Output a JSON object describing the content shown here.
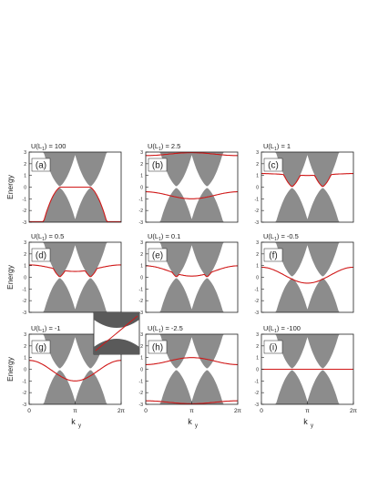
{
  "figure": {
    "ylabel": "Energy",
    "xlabel_main": "k",
    "xlabel_sub": "y",
    "x_ticks": [
      "0",
      "π",
      "2π"
    ],
    "y_ticks": [
      "3",
      "2",
      "1",
      "0",
      "-1",
      "-2",
      "-3"
    ]
  },
  "chart_data": [
    {
      "type": "area",
      "panel": "(a)",
      "title": "U(L",
      "title_sub": "1",
      "title_value": ") = 100",
      "red_curve": "flat",
      "red_energy": 0.0,
      "red_band": "lower",
      "xlim": [
        0,
        6.2832
      ],
      "ylim": [
        -3,
        3
      ]
    },
    {
      "type": "area",
      "panel": "(b)",
      "title": "U(L",
      "title_sub": "1",
      "title_value": ") = 2.5",
      "red_curve": "bound",
      "red_energy": 2.7,
      "red_band": "both",
      "xlim": [
        0,
        6.2832
      ],
      "ylim": [
        -3,
        3
      ]
    },
    {
      "type": "area",
      "panel": "(c)",
      "title": "U(L",
      "title_sub": "1",
      "title_value": ") = 1",
      "red_curve": "edge",
      "red_energy": 1.0,
      "red_band": "upper",
      "xlim": [
        0,
        6.2832
      ],
      "ylim": [
        -3,
        3
      ]
    },
    {
      "type": "area",
      "panel": "(d)",
      "title": "U(L",
      "title_sub": "1",
      "title_value": ") = 0.5",
      "red_curve": "edge",
      "red_energy": 0.5,
      "red_band": "upper",
      "xlim": [
        0,
        6.2832
      ],
      "ylim": [
        -3,
        3
      ]
    },
    {
      "type": "area",
      "panel": "(e)",
      "title": "U(L",
      "title_sub": "1",
      "title_value": ") = 0.1",
      "red_curve": "edge",
      "red_energy": 0.1,
      "red_band": "upper",
      "xlim": [
        0,
        6.2832
      ],
      "ylim": [
        -3,
        3
      ]
    },
    {
      "type": "area",
      "panel": "(f)",
      "title": "U(L",
      "title_sub": "1",
      "title_value": ") = -0.5",
      "red_curve": "edge",
      "red_energy": -0.5,
      "red_band": "upper",
      "xlim": [
        0,
        6.2832
      ],
      "ylim": [
        -3,
        3
      ]
    },
    {
      "type": "area",
      "panel": "(g)",
      "title": "U(L",
      "title_sub": "1",
      "title_value": ") = -1",
      "red_curve": "edge",
      "red_energy": -1.0,
      "red_band": "upper",
      "xlim": [
        0,
        6.2832
      ],
      "ylim": [
        -3,
        3
      ]
    },
    {
      "type": "area",
      "panel": "(h)",
      "title": "U(L",
      "title_sub": "1",
      "title_value": ") = -2.5",
      "red_curve": "bound",
      "red_energy": -2.7,
      "red_band": "both",
      "xlim": [
        0,
        6.2832
      ],
      "ylim": [
        -3,
        3
      ]
    },
    {
      "type": "area",
      "panel": "(i)",
      "title": "U(L",
      "title_sub": "1",
      "title_value": ") = -100",
      "red_curve": "flat",
      "red_energy": 0.0,
      "red_band": "upper",
      "xlim": [
        0,
        6.2832
      ],
      "ylim": [
        -3,
        3
      ]
    }
  ],
  "colors": {
    "band": "#8c8c8c",
    "edge_state": "#d01818",
    "axis": "#222222",
    "inset_band": "#5a5a5a"
  }
}
